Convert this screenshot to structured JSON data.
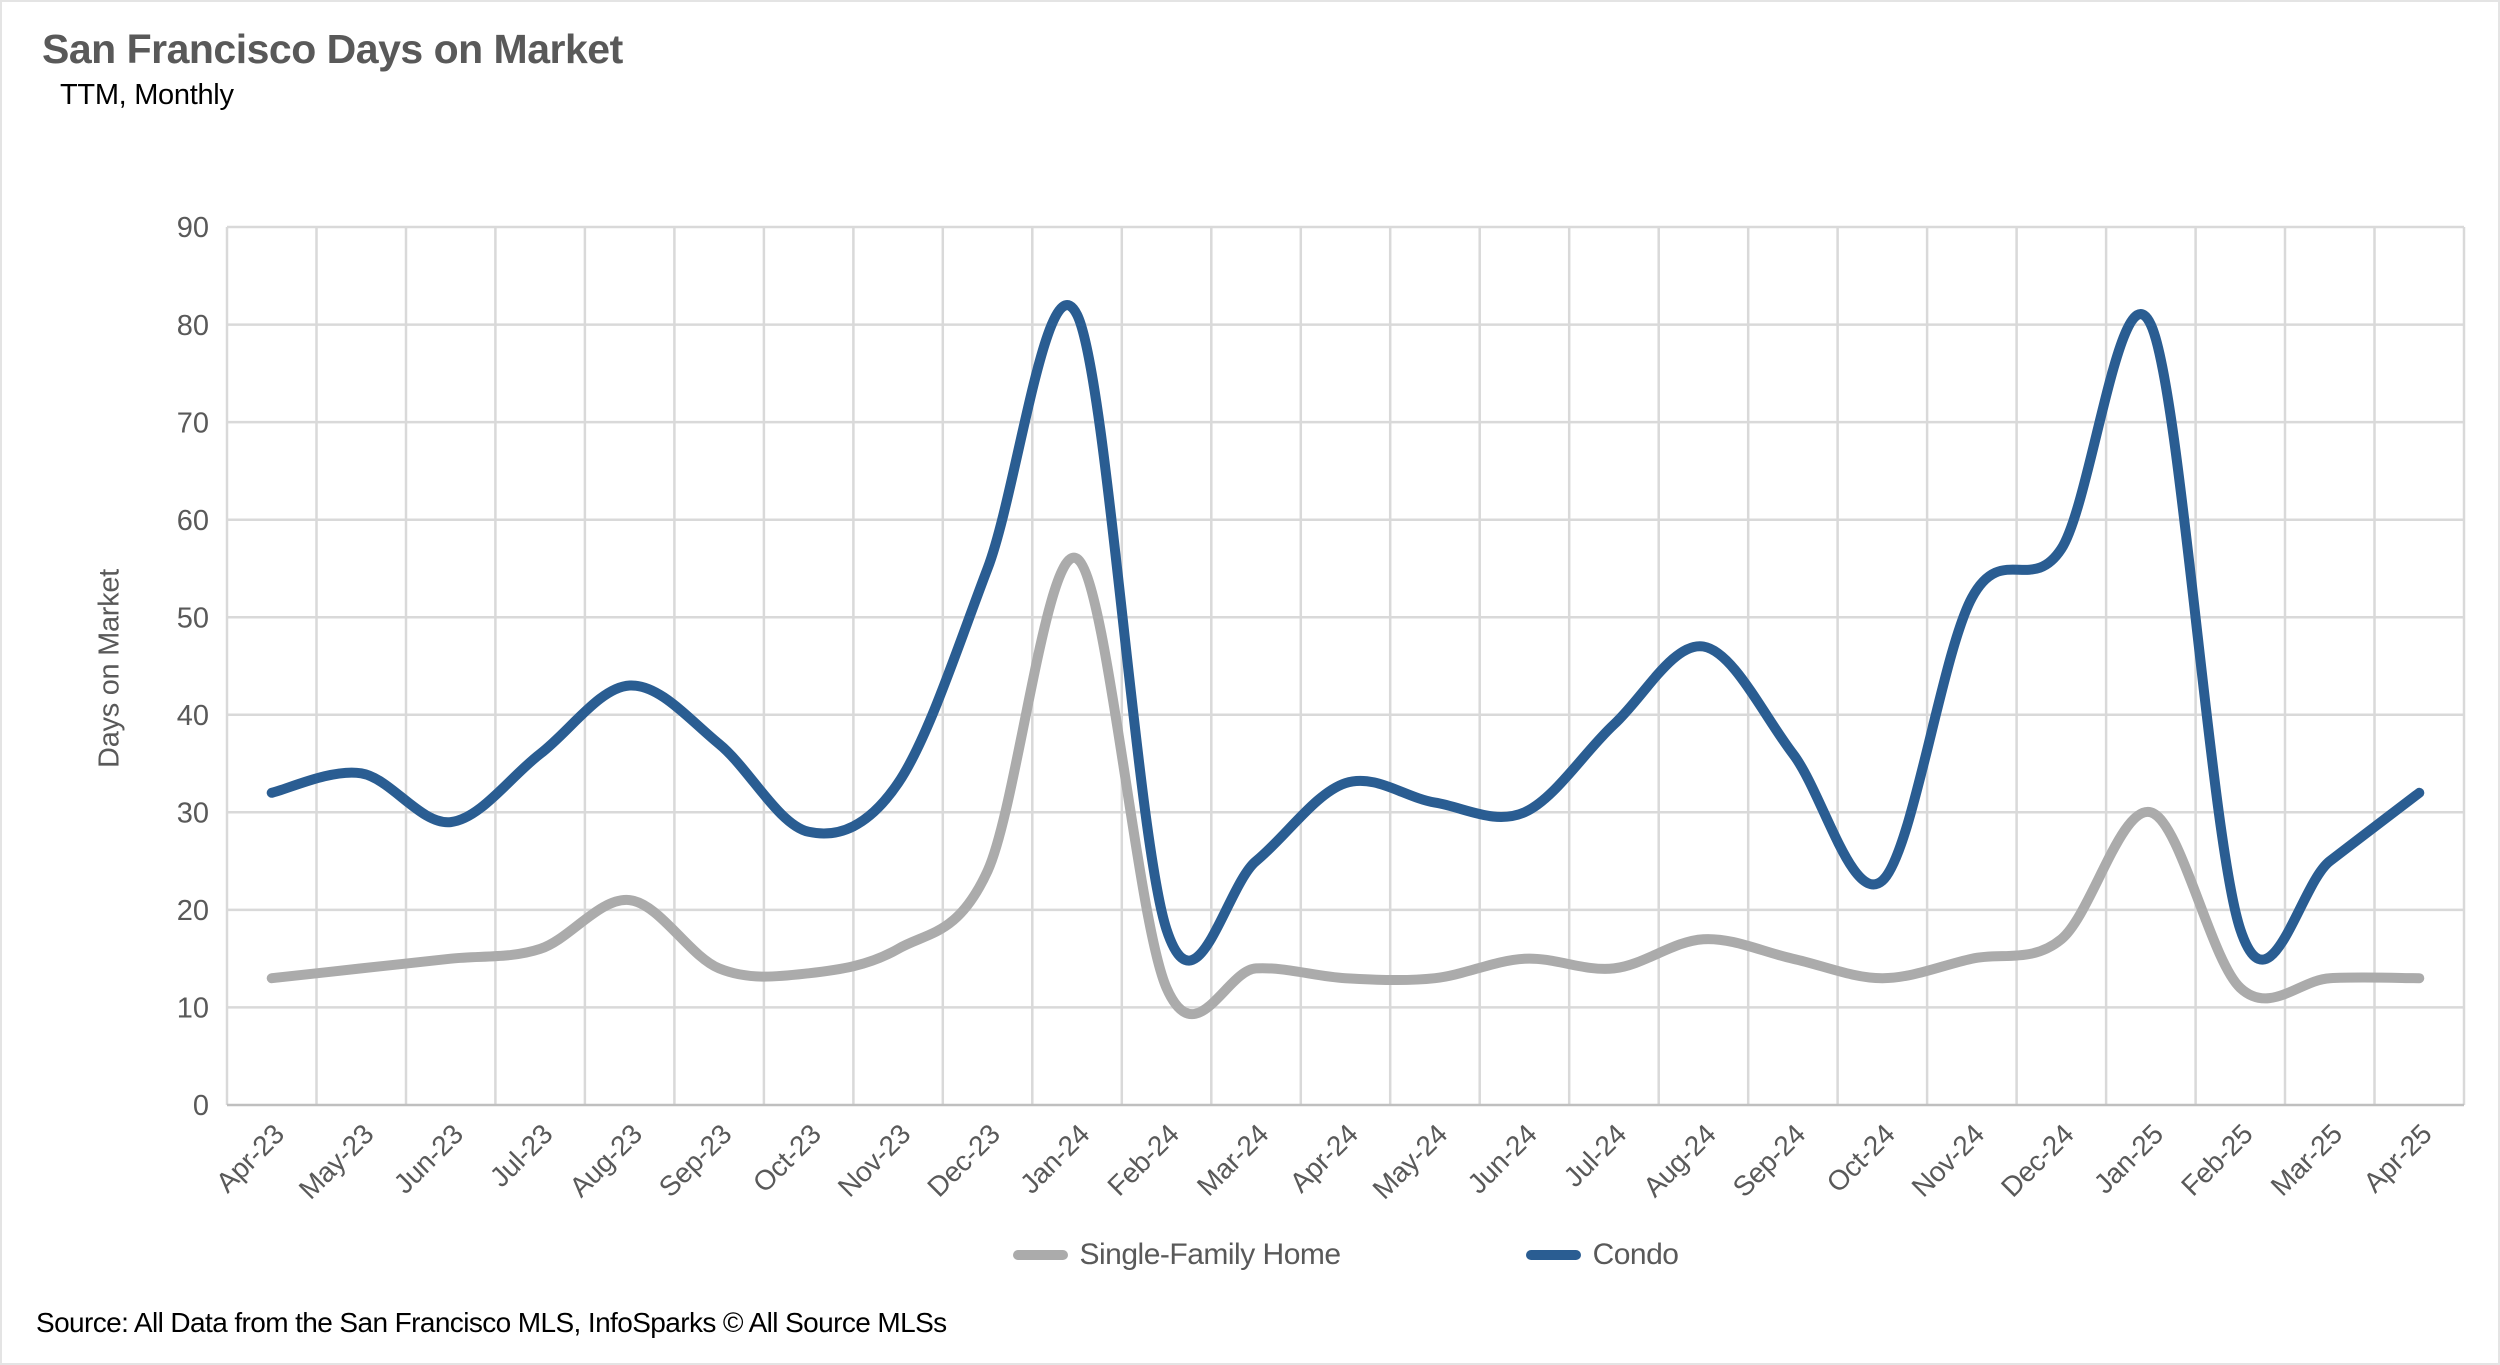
{
  "chart_data": {
    "type": "line",
    "title": "San Francisco Days on Market",
    "subtitle": "TTM, Monthly",
    "ylabel": "Days on Market",
    "xlabel": "",
    "source": "Source: All Data from the San Francisco MLS, InfoSparks © All Source MLSs",
    "ylim": [
      0,
      90
    ],
    "yticks": [
      0,
      10,
      20,
      30,
      40,
      50,
      60,
      70,
      80,
      90
    ],
    "grid": true,
    "smooth_lines": true,
    "legend_position": "bottom",
    "categories": [
      "Apr-23",
      "May-23",
      "Jun-23",
      "Jul-23",
      "Aug-23",
      "Sep-23",
      "Oct-23",
      "Nov-23",
      "Dec-23",
      "Jan-24",
      "Feb-24",
      "Mar-24",
      "Apr-24",
      "May-24",
      "Jun-24",
      "Jul-24",
      "Aug-24",
      "Sep-24",
      "Oct-24",
      "Nov-24",
      "Dec-24",
      "Jan-25",
      "Feb-25",
      "Mar-25",
      "Apr-25"
    ],
    "series": [
      {
        "name": "Single-Family Home",
        "color": "#ABABAB",
        "values": [
          13,
          14,
          15,
          16,
          21,
          14,
          13.5,
          16,
          24,
          56,
          12,
          14,
          13,
          13,
          15,
          14,
          17,
          15,
          13,
          15,
          17,
          30,
          12,
          13,
          13
        ]
      },
      {
        "name": "Condo",
        "color": "#2A5D92",
        "values": [
          32,
          34,
          29,
          36,
          43,
          37,
          28,
          33,
          55,
          81,
          18,
          25,
          33,
          31,
          30,
          39,
          47,
          36,
          23,
          52,
          57,
          80,
          18,
          25,
          32
        ]
      }
    ],
    "colors": {
      "gridline": "#D9D9D9",
      "axis_line": "#BFBFBF",
      "tick_label": "#595959",
      "title": "#595959",
      "subtitle": "#000000",
      "source": "#000000",
      "legend_text": "#595959",
      "background": "#FFFFFF"
    }
  }
}
